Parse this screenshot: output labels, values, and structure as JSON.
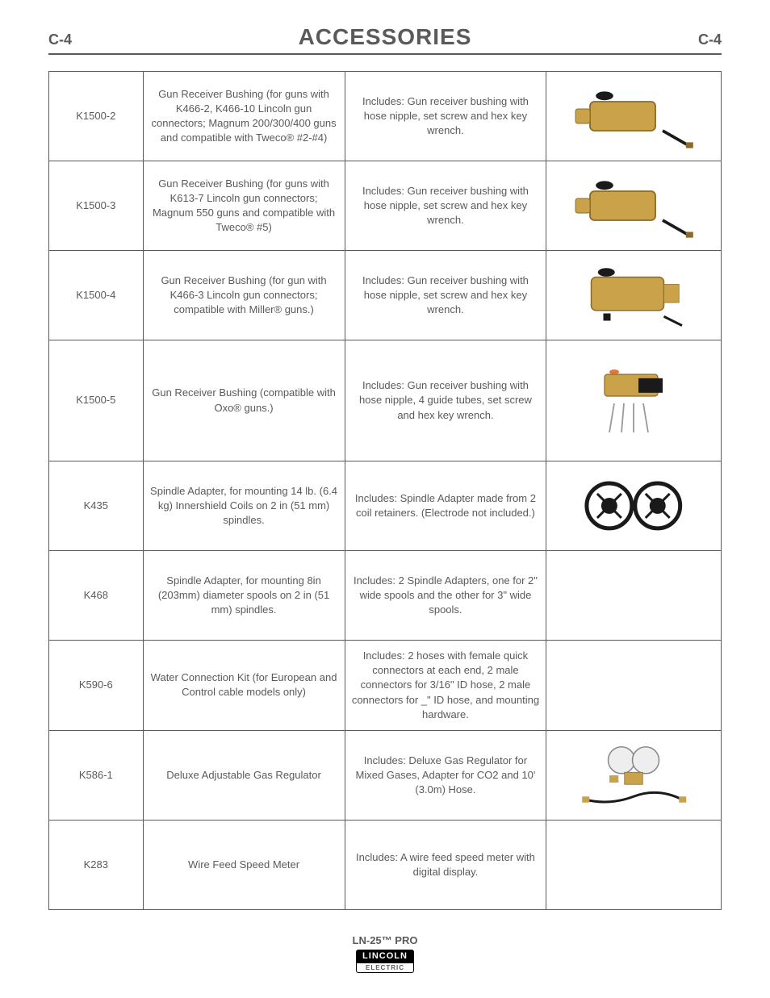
{
  "header": {
    "left": "C-4",
    "title": "ACCESSORIES",
    "right": "C-4"
  },
  "rows": [
    {
      "part": "K1500-2",
      "desc": "Gun Receiver Bushing (for guns with K466-2, K466-10 Lincoln gun connectors; Magnum 200/300/400 guns and compatible with Tweco® #2-#4)",
      "incl": "Includes: Gun receiver bushing with hose nipple, set screw and hex key wrench.",
      "img": "bushing-screw",
      "height": "sm"
    },
    {
      "part": "K1500-3",
      "desc": "Gun Receiver Bushing (for guns with K613-7 Lincoln gun connectors; Magnum 550 guns and compatible with Tweco® #5)",
      "incl": "Includes:  Gun receiver bushing with hose nipple, set screw and hex key wrench.",
      "img": "bushing-screw",
      "height": "sm"
    },
    {
      "part": "K1500-4",
      "desc": "Gun Receiver Bushing (for gun with K466-3 Lincoln gun connectors; compatible with Miller® guns.)",
      "incl": "Includes:  Gun receiver bushing with hose nipple, set screw and hex key wrench.",
      "img": "bushing-large",
      "height": "md"
    },
    {
      "part": "K1500-5",
      "desc": "Gun Receiver Bushing (compatible with Oxo® guns.)",
      "incl": "Includes:  Gun receiver bushing with hose nipple, 4 guide tubes, set screw and hex key wrench.",
      "img": "bushing-tubes",
      "height": "lg"
    },
    {
      "part": "K435",
      "desc": "Spindle Adapter, for mounting 14 lb. (6.4 kg) Innershield Coils on 2 in (51 mm) spindles.",
      "incl": "Includes:  Spindle Adapter made from 2 coil retainers.  (Electrode not included.)",
      "img": "spindle",
      "height": "sm"
    },
    {
      "part": "K468",
      "desc": "Spindle Adapter, for mounting 8in (203mm) diameter spools on 2 in (51 mm) spindles.",
      "incl": "Includes:  2 Spindle Adapters, one for 2\" wide spools and the other for 3\" wide spools.",
      "img": "none",
      "height": "sm"
    },
    {
      "part": "K590-6",
      "desc": "Water Connection Kit (for European and Control cable models only)",
      "incl": "Includes:  2 hoses with female quick connectors at each end, 2 male connectors for 3/16\" ID hose, 2 male connectors for _\" ID hose, and mounting hardware.",
      "img": "none",
      "height": "sm"
    },
    {
      "part": "K586-1",
      "desc": "Deluxe Adjustable Gas Regulator",
      "incl": "Includes:  Deluxe Gas Regulator for Mixed Gases, Adapter for CO2 and 10' (3.0m) Hose.",
      "img": "regulator",
      "height": "md"
    },
    {
      "part": "K283",
      "desc": "Wire Feed Speed Meter",
      "incl": "Includes: A wire feed speed meter with digital display.",
      "img": "none",
      "height": "sm"
    }
  ],
  "footer": {
    "product": "LN-25™ PRO",
    "brand_top": "LINCOLN",
    "brand_bot": "ELECTRIC"
  },
  "colors": {
    "text": "#5a5a5a",
    "border": "#5a5a5a",
    "brass": "#c9a24a",
    "brass_dark": "#8a6a2a",
    "black": "#1a1a1a"
  }
}
